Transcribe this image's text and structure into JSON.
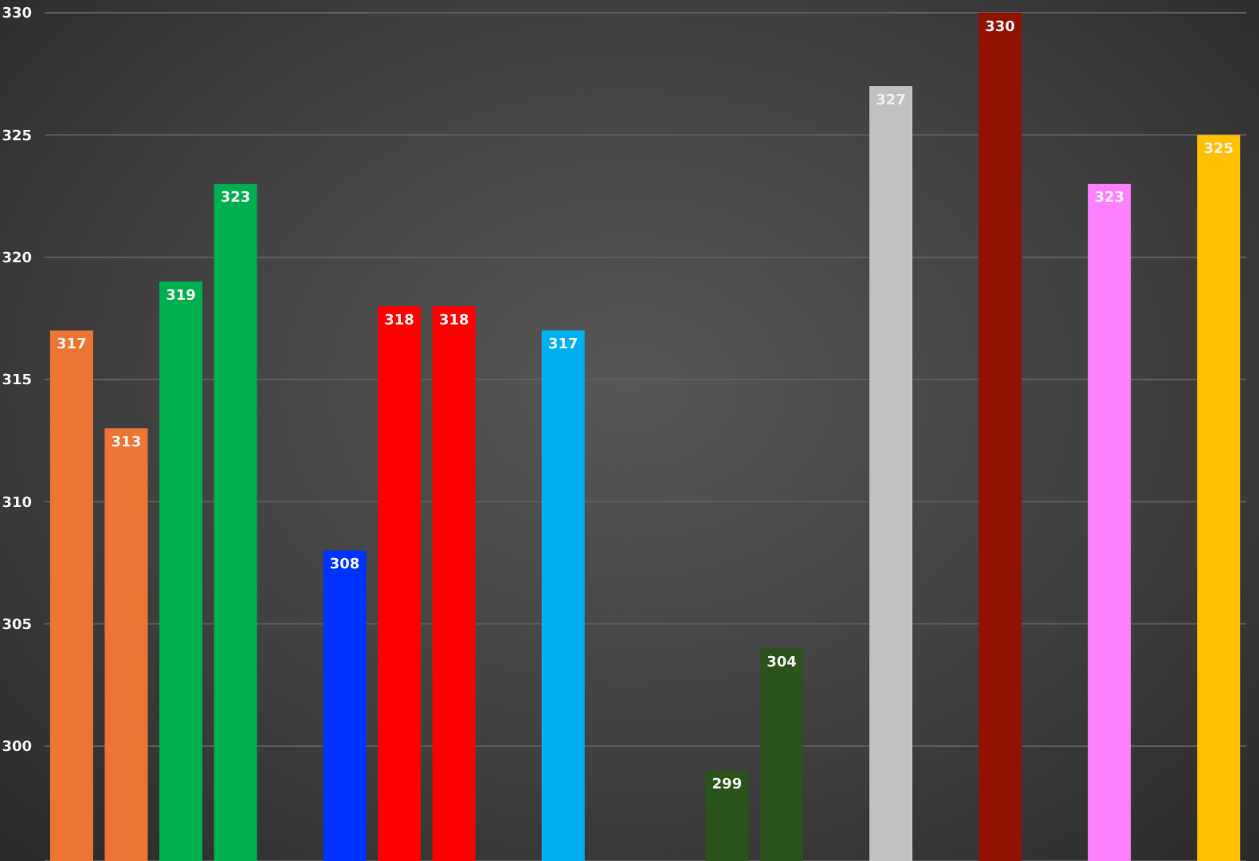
{
  "chart_data": {
    "type": "bar",
    "categories": [
      null,
      null,
      null,
      null,
      null,
      null,
      null,
      null,
      null,
      null,
      null,
      null,
      null,
      null,
      null,
      null,
      null,
      null,
      null,
      null,
      null,
      null
    ],
    "values": [
      317,
      313,
      319,
      323,
      null,
      308,
      318,
      318,
      null,
      317,
      null,
      null,
      299,
      304,
      null,
      327,
      null,
      330,
      null,
      323,
      null,
      325
    ],
    "colors": [
      "#ed7533",
      "#ed7533",
      "#00b050",
      "#00b050",
      null,
      "#0033ff",
      "#ff0000",
      "#ff0000",
      null,
      "#00b0f0",
      null,
      null,
      "#2a541b",
      "#2a541b",
      null,
      "#c0c0c0",
      null,
      "#921200",
      null,
      "#ff80ff",
      null,
      "#ffc000"
    ],
    "ylim": [
      295.3,
      330
    ],
    "yticks": [
      300,
      305,
      310,
      315,
      320,
      325,
      330
    ],
    "grid": "y",
    "data_labels": true,
    "tick_labels": "y"
  }
}
